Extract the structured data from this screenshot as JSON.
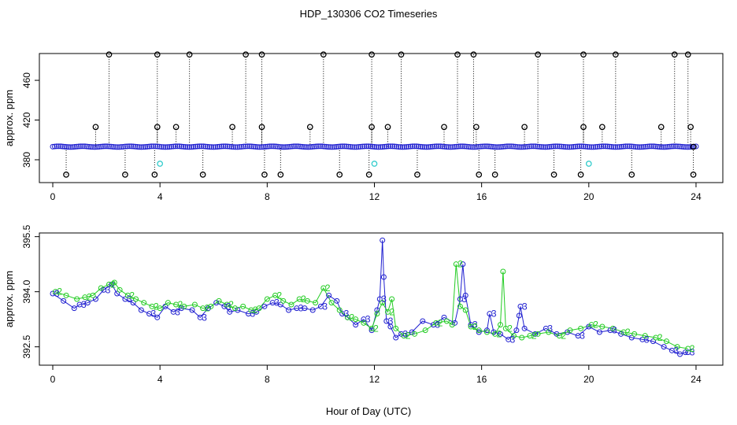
{
  "title": "HDP_130306  CO2 Timeseries",
  "xlabel": "Hour of Day (UTC)",
  "colors": {
    "axis": "#000000",
    "series_black": "#000000",
    "series_blue": "#1f1fd0",
    "series_green": "#22cc22",
    "series_cyan": "#33cccc"
  },
  "chart_data": [
    {
      "type": "scatter",
      "title": "",
      "xlabel": "",
      "ylabel": "approx. ppm",
      "xlim": [
        -0.5,
        25
      ],
      "ylim": [
        357,
        487
      ],
      "xticks": [
        0,
        4,
        8,
        12,
        16,
        20,
        24
      ],
      "yticks": [
        380,
        420,
        460
      ],
      "grid": false,
      "baseline": 393.2,
      "series": [
        {
          "name": "",
          "style": "circles with vertical dotted drop lines to baseline",
          "points": [
            [
              0.5,
              365
            ],
            [
              1.6,
              413
            ],
            [
              2.1,
              486
            ],
            [
              2.7,
              365
            ],
            [
              3.8,
              365
            ],
            [
              3.9,
              413
            ],
            [
              3.9,
              486
            ],
            [
              4.6,
              413
            ],
            [
              5.1,
              486
            ],
            [
              5.6,
              365
            ],
            [
              6.7,
              413
            ],
            [
              7.2,
              486
            ],
            [
              7.8,
              486
            ],
            [
              7.8,
              413
            ],
            [
              7.9,
              365
            ],
            [
              8.5,
              365
            ],
            [
              9.6,
              413
            ],
            [
              10.1,
              486
            ],
            [
              10.7,
              365
            ],
            [
              11.8,
              365
            ],
            [
              11.9,
              413
            ],
            [
              11.9,
              486
            ],
            [
              12.5,
              413
            ],
            [
              13.0,
              486
            ],
            [
              13.6,
              365
            ],
            [
              14.6,
              413
            ],
            [
              15.1,
              486
            ],
            [
              15.7,
              486
            ],
            [
              15.8,
              413
            ],
            [
              15.9,
              365
            ],
            [
              16.5,
              365
            ],
            [
              17.6,
              413
            ],
            [
              18.1,
              486
            ],
            [
              18.7,
              365
            ],
            [
              19.7,
              365
            ],
            [
              19.8,
              413
            ],
            [
              19.8,
              486
            ],
            [
              20.5,
              413
            ],
            [
              21.0,
              486
            ],
            [
              21.6,
              365
            ],
            [
              22.7,
              413
            ],
            [
              23.2,
              486
            ],
            [
              23.7,
              486
            ],
            [
              23.8,
              413
            ],
            [
              23.9,
              365
            ],
            [
              23.9,
              393
            ]
          ]
        },
        {
          "name": "",
          "style": "cyan circles",
          "points": [
            [
              4.0,
              376
            ],
            [
              12.0,
              376
            ],
            [
              20.0,
              376
            ]
          ]
        }
      ]
    },
    {
      "type": "line",
      "title": "",
      "xlabel": "",
      "ylabel": "approx. ppm",
      "xlim": [
        -0.5,
        25
      ],
      "ylim": [
        392.0,
        395.6
      ],
      "xticks": [
        0,
        4,
        8,
        12,
        16,
        20,
        24
      ],
      "yticks": [
        392.5,
        394.0,
        395.5
      ],
      "ytick_labels": [
        "392.5",
        "394.0",
        "395.5"
      ],
      "grid": false,
      "series": [
        {
          "name": "",
          "marker_label": "3",
          "x": [
            0.0,
            0.4,
            0.8,
            1.0,
            1.3,
            1.6,
            1.9,
            2.2,
            2.4,
            2.7,
            3.0,
            3.3,
            3.6,
            3.9,
            4.2,
            4.5,
            4.8,
            5.2,
            5.5,
            5.8,
            6.1,
            6.4,
            6.6,
            6.9,
            7.3,
            7.6,
            7.9,
            8.2,
            8.5,
            8.8,
            9.1,
            9.4,
            9.7,
            10.0,
            10.3,
            10.6,
            10.8,
            11.0,
            11.3,
            11.6,
            11.9,
            12.1,
            12.2,
            12.3,
            12.35,
            12.45,
            12.6,
            12.8,
            13.0,
            13.4,
            13.8,
            14.2,
            14.6,
            15.0,
            15.2,
            15.3,
            15.4,
            15.6,
            15.9,
            16.2,
            16.3,
            16.45,
            16.7,
            17.0,
            17.3,
            17.4,
            17.45,
            17.6,
            18.0,
            18.4,
            18.8,
            19.2,
            19.6,
            20.0,
            20.4,
            20.8,
            21.2,
            21.6,
            22.0,
            22.4,
            22.8,
            23.1,
            23.4,
            23.6,
            23.7
          ],
          "values": [
            393.95,
            393.75,
            393.55,
            393.65,
            393.7,
            393.8,
            394.05,
            394.2,
            393.95,
            393.8,
            393.7,
            393.5,
            393.4,
            393.3,
            393.6,
            393.45,
            393.55,
            393.5,
            393.3,
            393.55,
            393.7,
            393.6,
            393.45,
            393.5,
            393.4,
            393.45,
            393.6,
            393.7,
            393.65,
            393.5,
            393.55,
            393.55,
            393.5,
            393.6,
            393.9,
            393.75,
            393.4,
            393.3,
            393.1,
            393.25,
            392.95,
            393.5,
            393.8,
            395.4,
            394.4,
            393.2,
            393.05,
            392.75,
            392.85,
            392.9,
            393.2,
            393.1,
            393.3,
            393.15,
            393.8,
            394.75,
            393.9,
            393.1,
            392.9,
            392.95,
            393.4,
            392.9,
            392.85,
            392.7,
            392.95,
            393.35,
            393.6,
            393.0,
            392.85,
            393.0,
            392.85,
            392.9,
            392.8,
            393.05,
            392.9,
            392.95,
            392.85,
            392.75,
            392.7,
            392.65,
            392.5,
            392.4,
            392.3,
            392.35,
            392.35
          ]
        },
        {
          "name": "",
          "marker_label": "2",
          "x": [
            0.1,
            0.5,
            0.9,
            1.2,
            1.5,
            1.8,
            2.1,
            2.3,
            2.5,
            2.8,
            3.1,
            3.4,
            3.7,
            4.0,
            4.3,
            4.6,
            4.9,
            5.3,
            5.6,
            5.9,
            6.2,
            6.5,
            6.8,
            7.1,
            7.4,
            7.7,
            8.0,
            8.3,
            8.6,
            8.9,
            9.2,
            9.5,
            9.8,
            10.1,
            10.4,
            10.7,
            11.0,
            11.3,
            11.6,
            11.9,
            12.1,
            12.3,
            12.5,
            12.65,
            12.8,
            13.1,
            13.5,
            13.9,
            14.3,
            14.7,
            14.9,
            15.05,
            15.2,
            15.4,
            15.6,
            15.9,
            16.2,
            16.5,
            16.7,
            16.8,
            16.9,
            17.2,
            17.5,
            17.8,
            18.1,
            18.5,
            18.9,
            19.3,
            19.7,
            20.1,
            20.5,
            20.9,
            21.3,
            21.7,
            22.1,
            22.5,
            22.9,
            23.3,
            23.7
          ],
          "values": [
            394.0,
            393.9,
            393.8,
            393.85,
            393.9,
            394.1,
            394.2,
            394.25,
            394.05,
            393.9,
            393.8,
            393.7,
            393.6,
            393.55,
            393.7,
            393.65,
            393.6,
            393.65,
            393.55,
            393.6,
            393.75,
            393.65,
            393.55,
            393.6,
            393.5,
            393.55,
            393.8,
            393.9,
            393.75,
            393.65,
            393.8,
            393.75,
            393.7,
            394.1,
            393.7,
            393.5,
            393.3,
            393.25,
            393.15,
            393.0,
            393.4,
            393.7,
            393.45,
            393.8,
            393.0,
            392.8,
            392.85,
            392.95,
            393.15,
            393.2,
            393.1,
            394.75,
            393.6,
            393.5,
            393.05,
            392.95,
            392.9,
            392.85,
            393.1,
            394.55,
            393.0,
            392.8,
            392.75,
            392.8,
            392.85,
            392.9,
            392.8,
            392.95,
            393.0,
            393.1,
            393.05,
            393.0,
            392.9,
            392.85,
            392.8,
            392.75,
            392.65,
            392.5,
            392.45
          ]
        }
      ]
    }
  ]
}
